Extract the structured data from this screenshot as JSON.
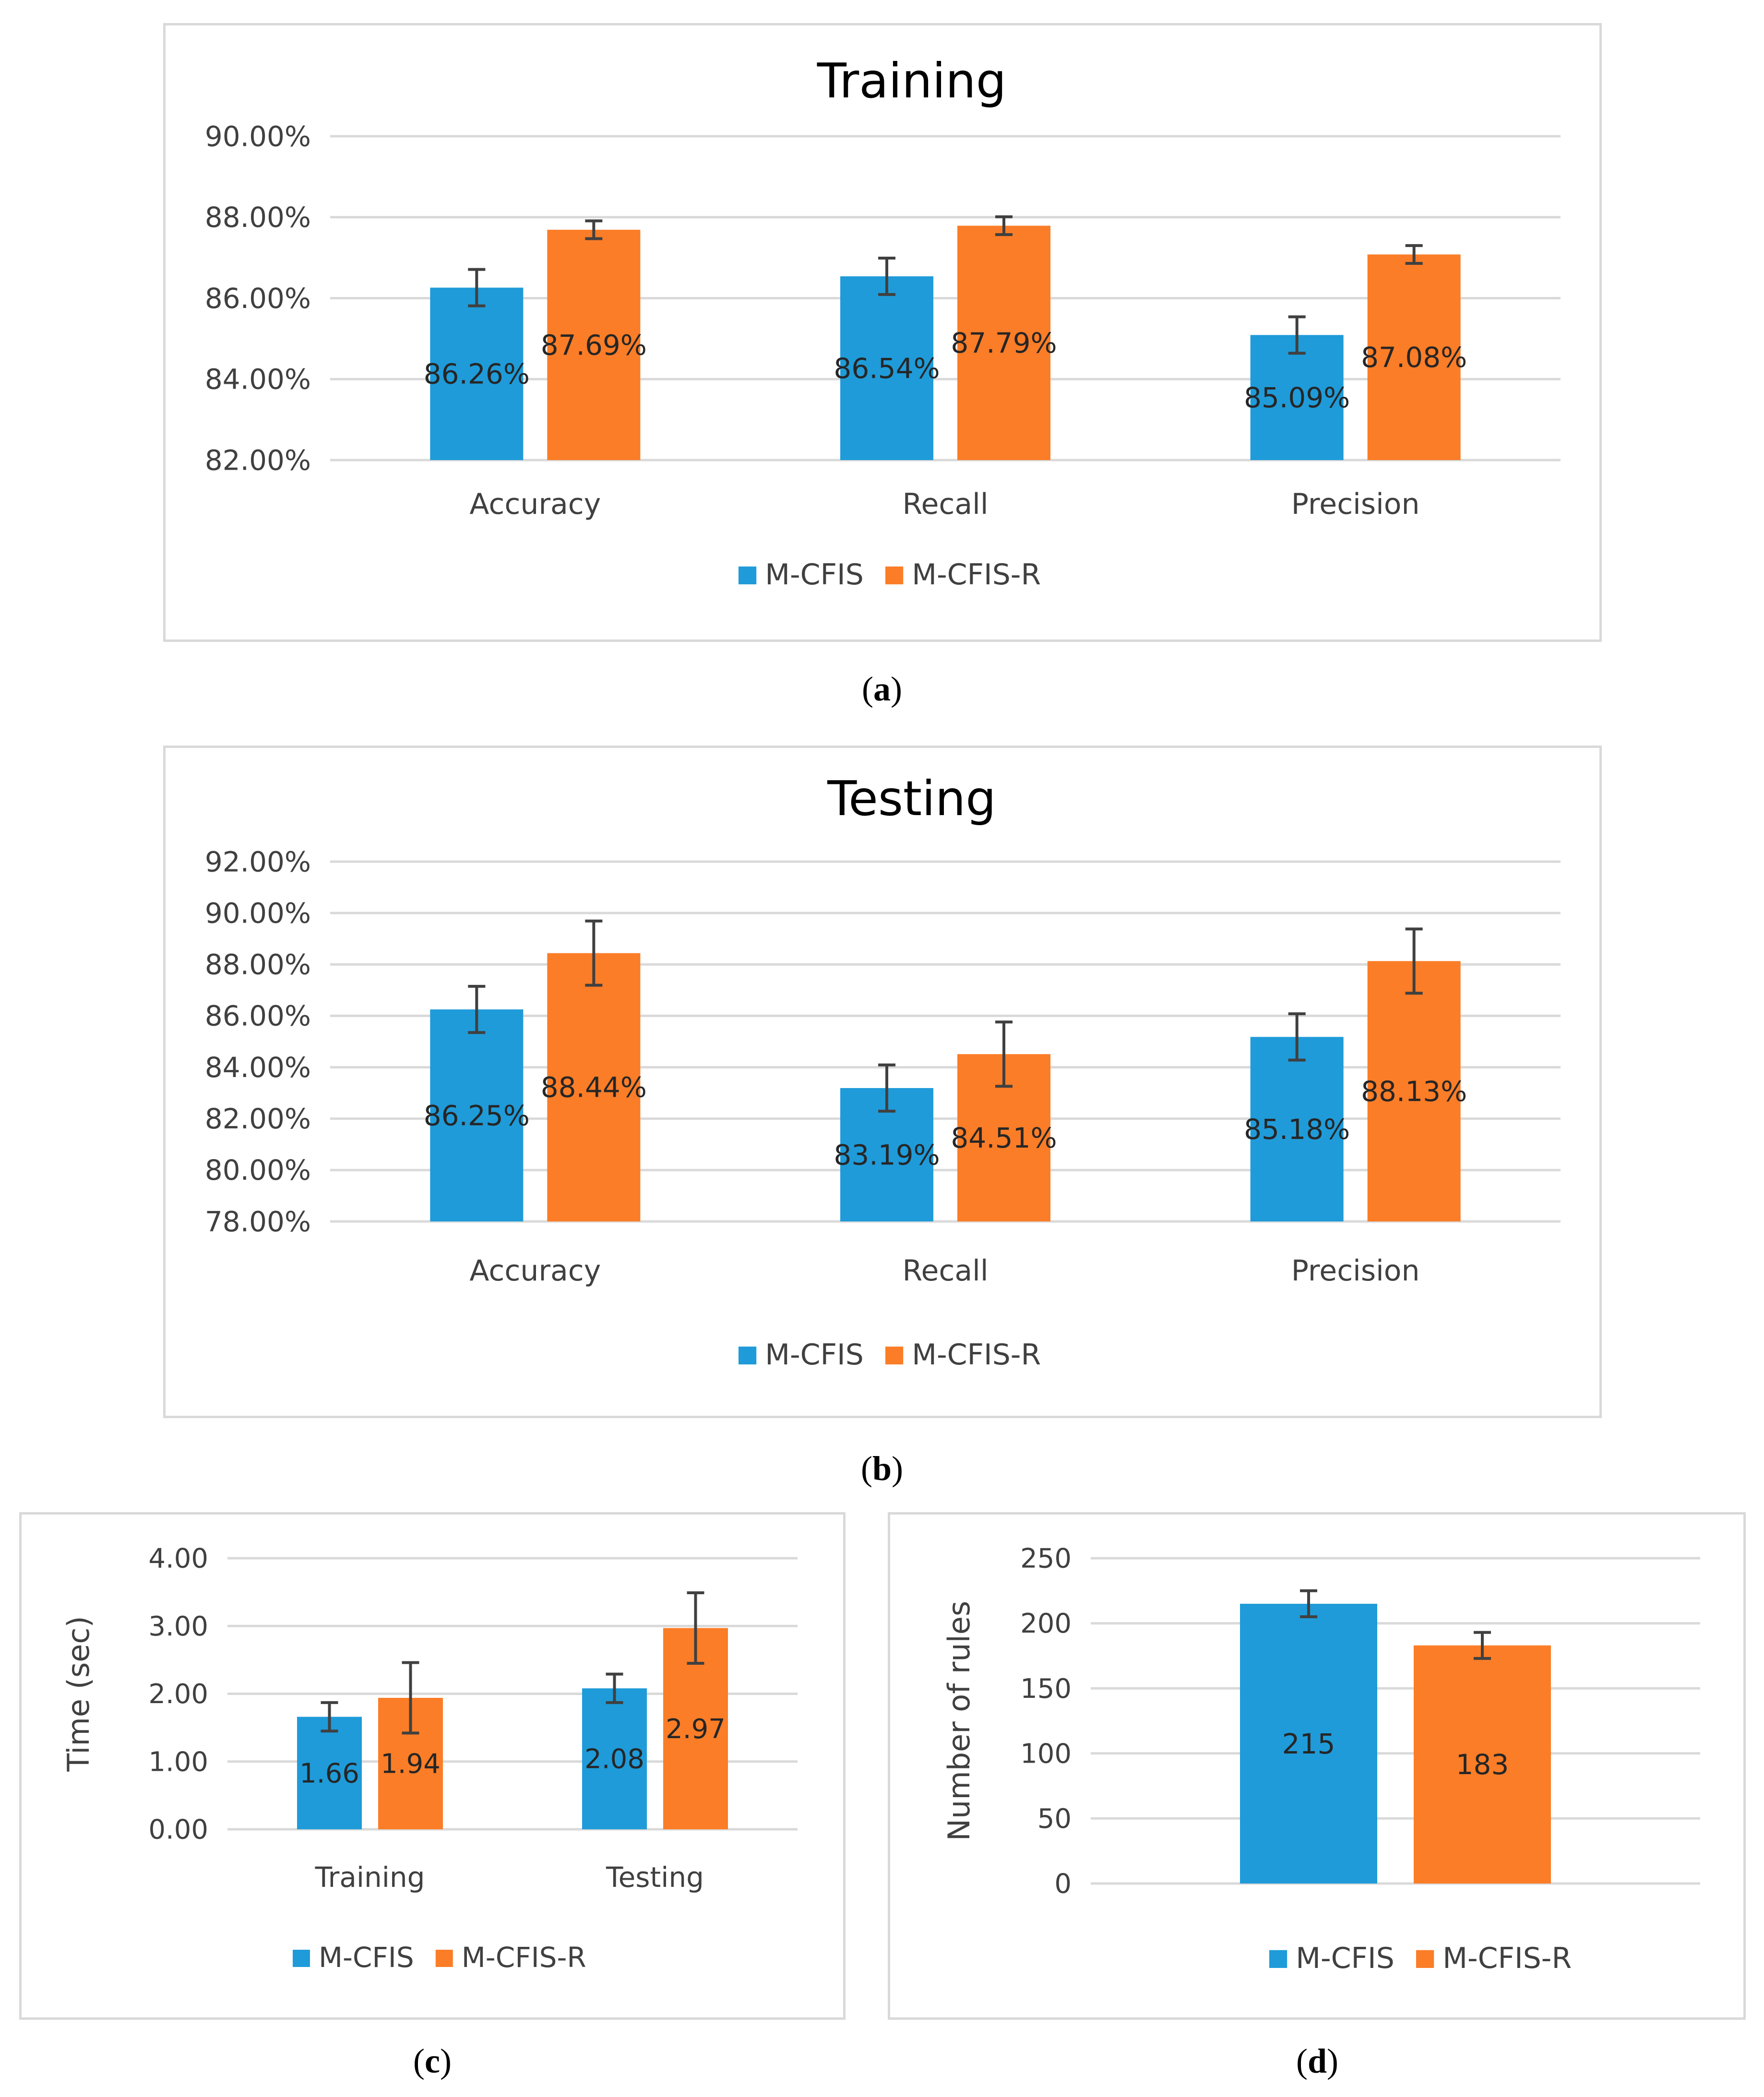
{
  "colors": {
    "mcfis": "#1f9bd9",
    "mcfisr": "#fb7d27",
    "grid": "#d9d9d9",
    "error": "#404040"
  },
  "chart_data": [
    {
      "id": "a",
      "caption": "a",
      "type": "bar",
      "title": "Training",
      "categories": [
        "Accuracy",
        "Recall",
        "Precision"
      ],
      "series": [
        {
          "name": "M-CFIS",
          "values": [
            86.26,
            86.54,
            85.09
          ],
          "errors": [
            0.45,
            0.45,
            0.45
          ],
          "labels": [
            "86.26%",
            "86.54%",
            "85.09%"
          ]
        },
        {
          "name": "M-CFIS-R",
          "values": [
            87.69,
            87.79,
            87.08
          ],
          "errors": [
            0.22,
            0.22,
            0.22
          ],
          "labels": [
            "87.69%",
            "87.79%",
            "87.08%"
          ]
        }
      ],
      "ylim": [
        82,
        90
      ],
      "yticks": [
        82,
        84,
        86,
        88,
        90
      ],
      "ytick_labels": [
        "82.00%",
        "84.00%",
        "86.00%",
        "88.00%",
        "90.00%"
      ],
      "ylabel": "",
      "legend": [
        "M-CFIS",
        "M-CFIS-R"
      ],
      "legend_position": "bottom"
    },
    {
      "id": "b",
      "caption": "b",
      "type": "bar",
      "title": "Testing",
      "categories": [
        "Accuracy",
        "Recall",
        "Precision"
      ],
      "series": [
        {
          "name": "M-CFIS",
          "values": [
            86.25,
            83.19,
            85.18
          ],
          "errors": [
            0.9,
            0.9,
            0.9
          ],
          "labels": [
            "86.25%",
            "83.19%",
            "85.18%"
          ]
        },
        {
          "name": "M-CFIS-R",
          "values": [
            88.44,
            84.51,
            88.13
          ],
          "errors": [
            1.25,
            1.25,
            1.25
          ],
          "labels": [
            "88.44%",
            "84.51%",
            "88.13%"
          ]
        }
      ],
      "ylim": [
        78,
        92
      ],
      "yticks": [
        78,
        80,
        82,
        84,
        86,
        88,
        90,
        92
      ],
      "ytick_labels": [
        "78.00%",
        "80.00%",
        "82.00%",
        "84.00%",
        "86.00%",
        "88.00%",
        "90.00%",
        "92.00%"
      ],
      "ylabel": "",
      "legend": [
        "M-CFIS",
        "M-CFIS-R"
      ],
      "legend_position": "bottom"
    },
    {
      "id": "c",
      "caption": "c",
      "type": "bar",
      "title": "",
      "categories": [
        "Training",
        "Testing"
      ],
      "series": [
        {
          "name": "M-CFIS",
          "values": [
            1.66,
            2.08
          ],
          "errors": [
            0.21,
            0.21
          ],
          "labels": [
            "1.66",
            "2.08"
          ]
        },
        {
          "name": "M-CFIS-R",
          "values": [
            1.94,
            2.97
          ],
          "errors": [
            0.52,
            0.52
          ],
          "labels": [
            "1.94",
            "2.97"
          ]
        }
      ],
      "ylim": [
        0,
        4
      ],
      "yticks": [
        0,
        1,
        2,
        3,
        4
      ],
      "ytick_labels": [
        "0.00",
        "1.00",
        "2.00",
        "3.00",
        "4.00"
      ],
      "ylabel": "Time (sec)",
      "legend": [
        "M-CFIS",
        "M-CFIS-R"
      ],
      "legend_position": "bottom"
    },
    {
      "id": "d",
      "caption": "d",
      "type": "bar",
      "title": "",
      "categories": [
        ""
      ],
      "series": [
        {
          "name": "M-CFIS",
          "values": [
            215
          ],
          "errors": [
            10
          ],
          "labels": [
            "215"
          ]
        },
        {
          "name": "M-CFIS-R",
          "values": [
            183
          ],
          "errors": [
            10
          ],
          "labels": [
            "183"
          ]
        }
      ],
      "ylim": [
        0,
        250
      ],
      "yticks": [
        0,
        50,
        100,
        150,
        200,
        250
      ],
      "ytick_labels": [
        "0",
        "50",
        "100",
        "150",
        "200",
        "250"
      ],
      "ylabel": "Number of rules",
      "legend": [
        "M-CFIS",
        "M-CFIS-R"
      ],
      "legend_position": "bottom"
    }
  ]
}
